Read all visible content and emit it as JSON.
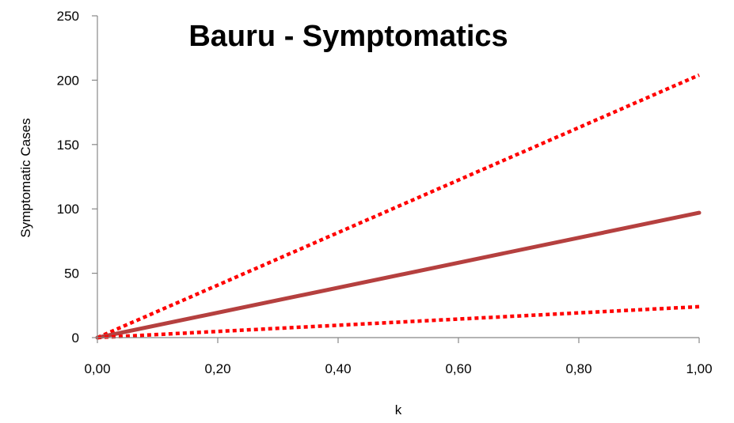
{
  "chart_data": {
    "type": "line",
    "title": "Bauru - Symptomatics",
    "xlabel": "k",
    "ylabel": "Symptomatic Cases",
    "xlim": [
      0,
      1
    ],
    "ylim": [
      0,
      250
    ],
    "x_ticks": [
      "0,00",
      "0,20",
      "0,40",
      "0,60",
      "0,80",
      "1,00"
    ],
    "y_ticks": [
      "0",
      "50",
      "100",
      "150",
      "200",
      "250"
    ],
    "grid": false,
    "legend": "none",
    "series": [
      {
        "style": "dotted",
        "color": "#ff0000",
        "x": [
          0,
          1
        ],
        "values": [
          0,
          204
        ]
      },
      {
        "style": "solid",
        "color": "#b5403f",
        "x": [
          0,
          1
        ],
        "values": [
          0,
          97
        ]
      },
      {
        "style": "dotted",
        "color": "#ff0000",
        "x": [
          0,
          1
        ],
        "values": [
          0,
          24
        ]
      }
    ]
  }
}
